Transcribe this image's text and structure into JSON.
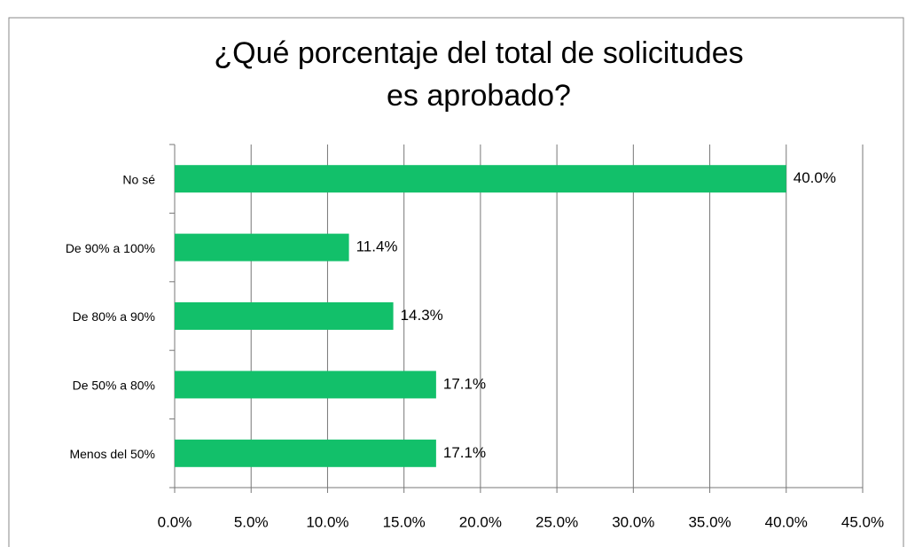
{
  "chart_data": {
    "type": "bar",
    "orientation": "horizontal",
    "title": [
      "¿Qué porcentaje del total de solicitudes",
      "es aprobado?"
    ],
    "categories": [
      "No sé",
      "De 90% a 100%",
      "De 80% a 90%",
      "De 50% a 80%",
      "Menos del 50%"
    ],
    "values": [
      40.0,
      11.4,
      14.3,
      17.1,
      17.1
    ],
    "value_labels": [
      "40.0%",
      "11.4%",
      "14.3%",
      "17.1%",
      "17.1%"
    ],
    "color": "#12c06a",
    "xlim": [
      0,
      45
    ],
    "xticks": [
      {
        "value": 0,
        "label": "0.0%"
      },
      {
        "value": 5,
        "label": "5.0%"
      },
      {
        "value": 10,
        "label": "10.0%"
      },
      {
        "value": 15,
        "label": "15.0%"
      },
      {
        "value": 20,
        "label": "20.0%"
      },
      {
        "value": 25,
        "label": "25.0%"
      },
      {
        "value": 30,
        "label": "30.0%"
      },
      {
        "value": 35,
        "label": "35.0%"
      },
      {
        "value": 40,
        "label": "40.0%"
      },
      {
        "value": 45,
        "label": "45.0%"
      }
    ],
    "grid": true
  }
}
